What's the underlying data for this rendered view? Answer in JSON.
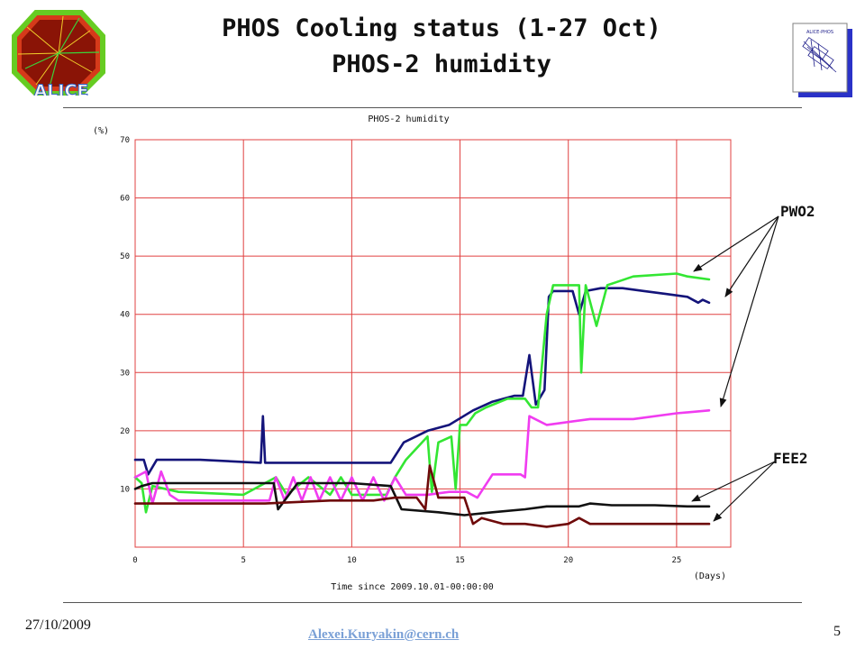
{
  "header": {
    "title_line1": "PHOS Cooling status (1-27 Oct)",
    "title_line2": "PHOS-2 humidity"
  },
  "footer": {
    "date": "27/10/2009",
    "email": "Alexei.Kuryakin@cern.ch",
    "page": "5"
  },
  "logos": {
    "left_text": "ALICE",
    "right_text": "ALICE-PHOS"
  },
  "annotations": {
    "pwo2": "PWO2",
    "fee2": "FEE2"
  },
  "colors": {
    "grid": "#e04040",
    "navy": "#14147a",
    "green": "#33e633",
    "magenta": "#f03cf0",
    "black": "#111111",
    "maroon": "#6e0a0a"
  },
  "chart_data": {
    "type": "line",
    "title": "PHOS-2 humidity",
    "xlabel": "Time since 2009.10.01-00:00:00",
    "x_unit": "(Days)",
    "y_unit": "(%)",
    "xlim": [
      0,
      27.5
    ],
    "ylim": [
      0,
      70
    ],
    "xticks": [
      0,
      5,
      10,
      15,
      20,
      25
    ],
    "yticks": [
      10,
      20,
      30,
      40,
      50,
      60,
      70
    ],
    "grid": true,
    "series": [
      {
        "color": "navy",
        "x": [
          0,
          0.4,
          0.6,
          1,
          3,
          5.8,
          5.9,
          6.0,
          6.4,
          10,
          11.8,
          12.4,
          13.5,
          14.5,
          15.6,
          16.5,
          17.5,
          17.9,
          18.2,
          18.5,
          18.9,
          19.1,
          19.3,
          20.2,
          20.5,
          20.8,
          21.5,
          22.5,
          23.5,
          24.5,
          25.5,
          26.0,
          26.2,
          26.5
        ],
        "y": [
          15,
          15,
          12.5,
          15,
          15,
          14.5,
          22.5,
          14.5,
          14.5,
          14.5,
          14.5,
          18,
          20,
          21,
          23.5,
          25,
          26,
          26,
          33,
          24.5,
          27,
          43,
          44,
          44,
          40,
          44,
          44.5,
          44.5,
          44,
          43.5,
          43,
          42,
          42.5,
          42
        ]
      },
      {
        "color": "green",
        "x": [
          0,
          0.3,
          0.5,
          0.8,
          2,
          5,
          6.5,
          7,
          8,
          9,
          9.5,
          10,
          11,
          11.6,
          12,
          12.5,
          13.5,
          13.7,
          14,
          14.6,
          14.8,
          15.0,
          15.3,
          15.7,
          16.2,
          17.2,
          18.0,
          18.3,
          18.6,
          19.0,
          19.3,
          20.5,
          20.6,
          20.8,
          21.3,
          21.8,
          22.2,
          23,
          25,
          25.5,
          26.5
        ],
        "y": [
          12,
          11,
          6,
          10.5,
          9.5,
          9,
          12,
          9,
          12,
          9,
          12,
          9,
          9,
          9,
          12,
          15,
          19,
          9.5,
          18,
          19,
          10,
          21,
          21,
          23,
          24,
          25.5,
          25.5,
          24,
          24,
          40,
          45,
          45,
          30,
          45,
          38,
          45,
          45.5,
          46.5,
          47,
          46.5,
          46
        ]
      },
      {
        "color": "magenta",
        "x": [
          0,
          0.5,
          0.8,
          1.2,
          1.6,
          2,
          4,
          6.2,
          6.5,
          6.9,
          7.3,
          7.7,
          8.1,
          8.5,
          9.0,
          9.5,
          10,
          10.5,
          11,
          11.5,
          12,
          12.5,
          13,
          13.5,
          14.5,
          15.3,
          15.8,
          16.5,
          17.8,
          18.0,
          18.2,
          19,
          21,
          23,
          25,
          26.5
        ],
        "y": [
          12,
          13,
          7.5,
          13,
          9,
          8,
          8,
          8,
          12,
          8,
          12,
          8,
          12,
          8,
          12,
          8,
          12,
          8,
          12,
          8,
          12,
          9,
          9,
          9,
          9.5,
          9.5,
          8.5,
          12.5,
          12.5,
          12,
          22.5,
          21,
          22,
          22,
          23,
          23.5
        ]
      },
      {
        "color": "black",
        "x": [
          0,
          0.3,
          0.8,
          3,
          5,
          6.0,
          6.4,
          6.6,
          7.5,
          10,
          11.8,
          12.3,
          14,
          15.2,
          16.5,
          18,
          19,
          20.5,
          21,
          22,
          24,
          25.5,
          26.5
        ],
        "y": [
          10,
          10.5,
          11,
          11,
          11,
          11,
          11,
          6.5,
          11,
          11,
          10.5,
          6.5,
          6,
          5.5,
          6,
          6.5,
          7,
          7,
          7.5,
          7.2,
          7.2,
          7,
          7
        ]
      },
      {
        "color": "maroon",
        "x": [
          0,
          1,
          3,
          6,
          9,
          11,
          12,
          13,
          13.4,
          13.6,
          14,
          15.2,
          15.6,
          16,
          17,
          18,
          19,
          20,
          20.5,
          21,
          22,
          24,
          25.5,
          26.5
        ],
        "y": [
          7.5,
          7.5,
          7.5,
          7.5,
          8,
          8,
          8.5,
          8.5,
          6.5,
          14,
          8.5,
          8.5,
          4,
          5,
          4,
          4,
          3.5,
          4,
          5,
          4,
          4,
          4,
          4,
          4
        ]
      }
    ]
  }
}
